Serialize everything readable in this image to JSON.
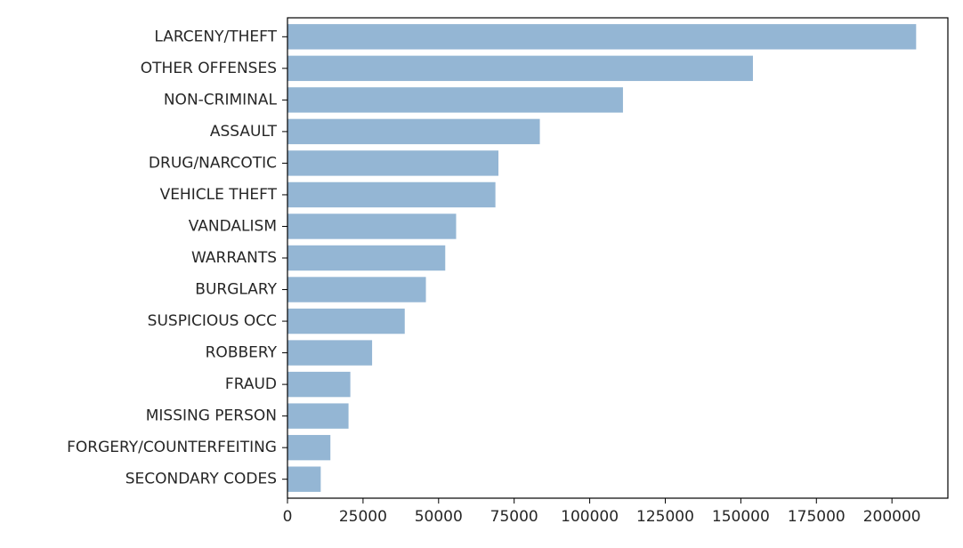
{
  "chart_data": {
    "type": "bar",
    "orientation": "horizontal",
    "title": "",
    "xlabel": "",
    "ylabel": "",
    "categories": [
      "LARCENY/THEFT",
      "OTHER OFFENSES",
      "NON-CRIMINAL",
      "ASSAULT",
      "DRUG/NARCOTIC",
      "VEHICLE THEFT",
      "VANDALISM",
      "WARRANTS",
      "BURGLARY",
      "SUSPICIOUS OCC",
      "ROBBERY",
      "FRAUD",
      "MISSING PERSON",
      "FORGERY/COUNTERFEITING",
      "SECONDARY CODES"
    ],
    "values": [
      208000,
      154000,
      111000,
      83500,
      69800,
      68800,
      55800,
      52200,
      45800,
      38800,
      28000,
      20800,
      20200,
      14200,
      11000
    ],
    "xlim": [
      0,
      218500
    ],
    "xticks": [
      0,
      25000,
      50000,
      75000,
      100000,
      125000,
      150000,
      175000,
      200000
    ],
    "xtick_labels": [
      "0",
      "25000",
      "50000",
      "75000",
      "100000",
      "125000",
      "150000",
      "175000",
      "200000"
    ],
    "grid": false,
    "legend": "none",
    "bar_color": "#94b6d4",
    "axis_color": "#000000"
  }
}
